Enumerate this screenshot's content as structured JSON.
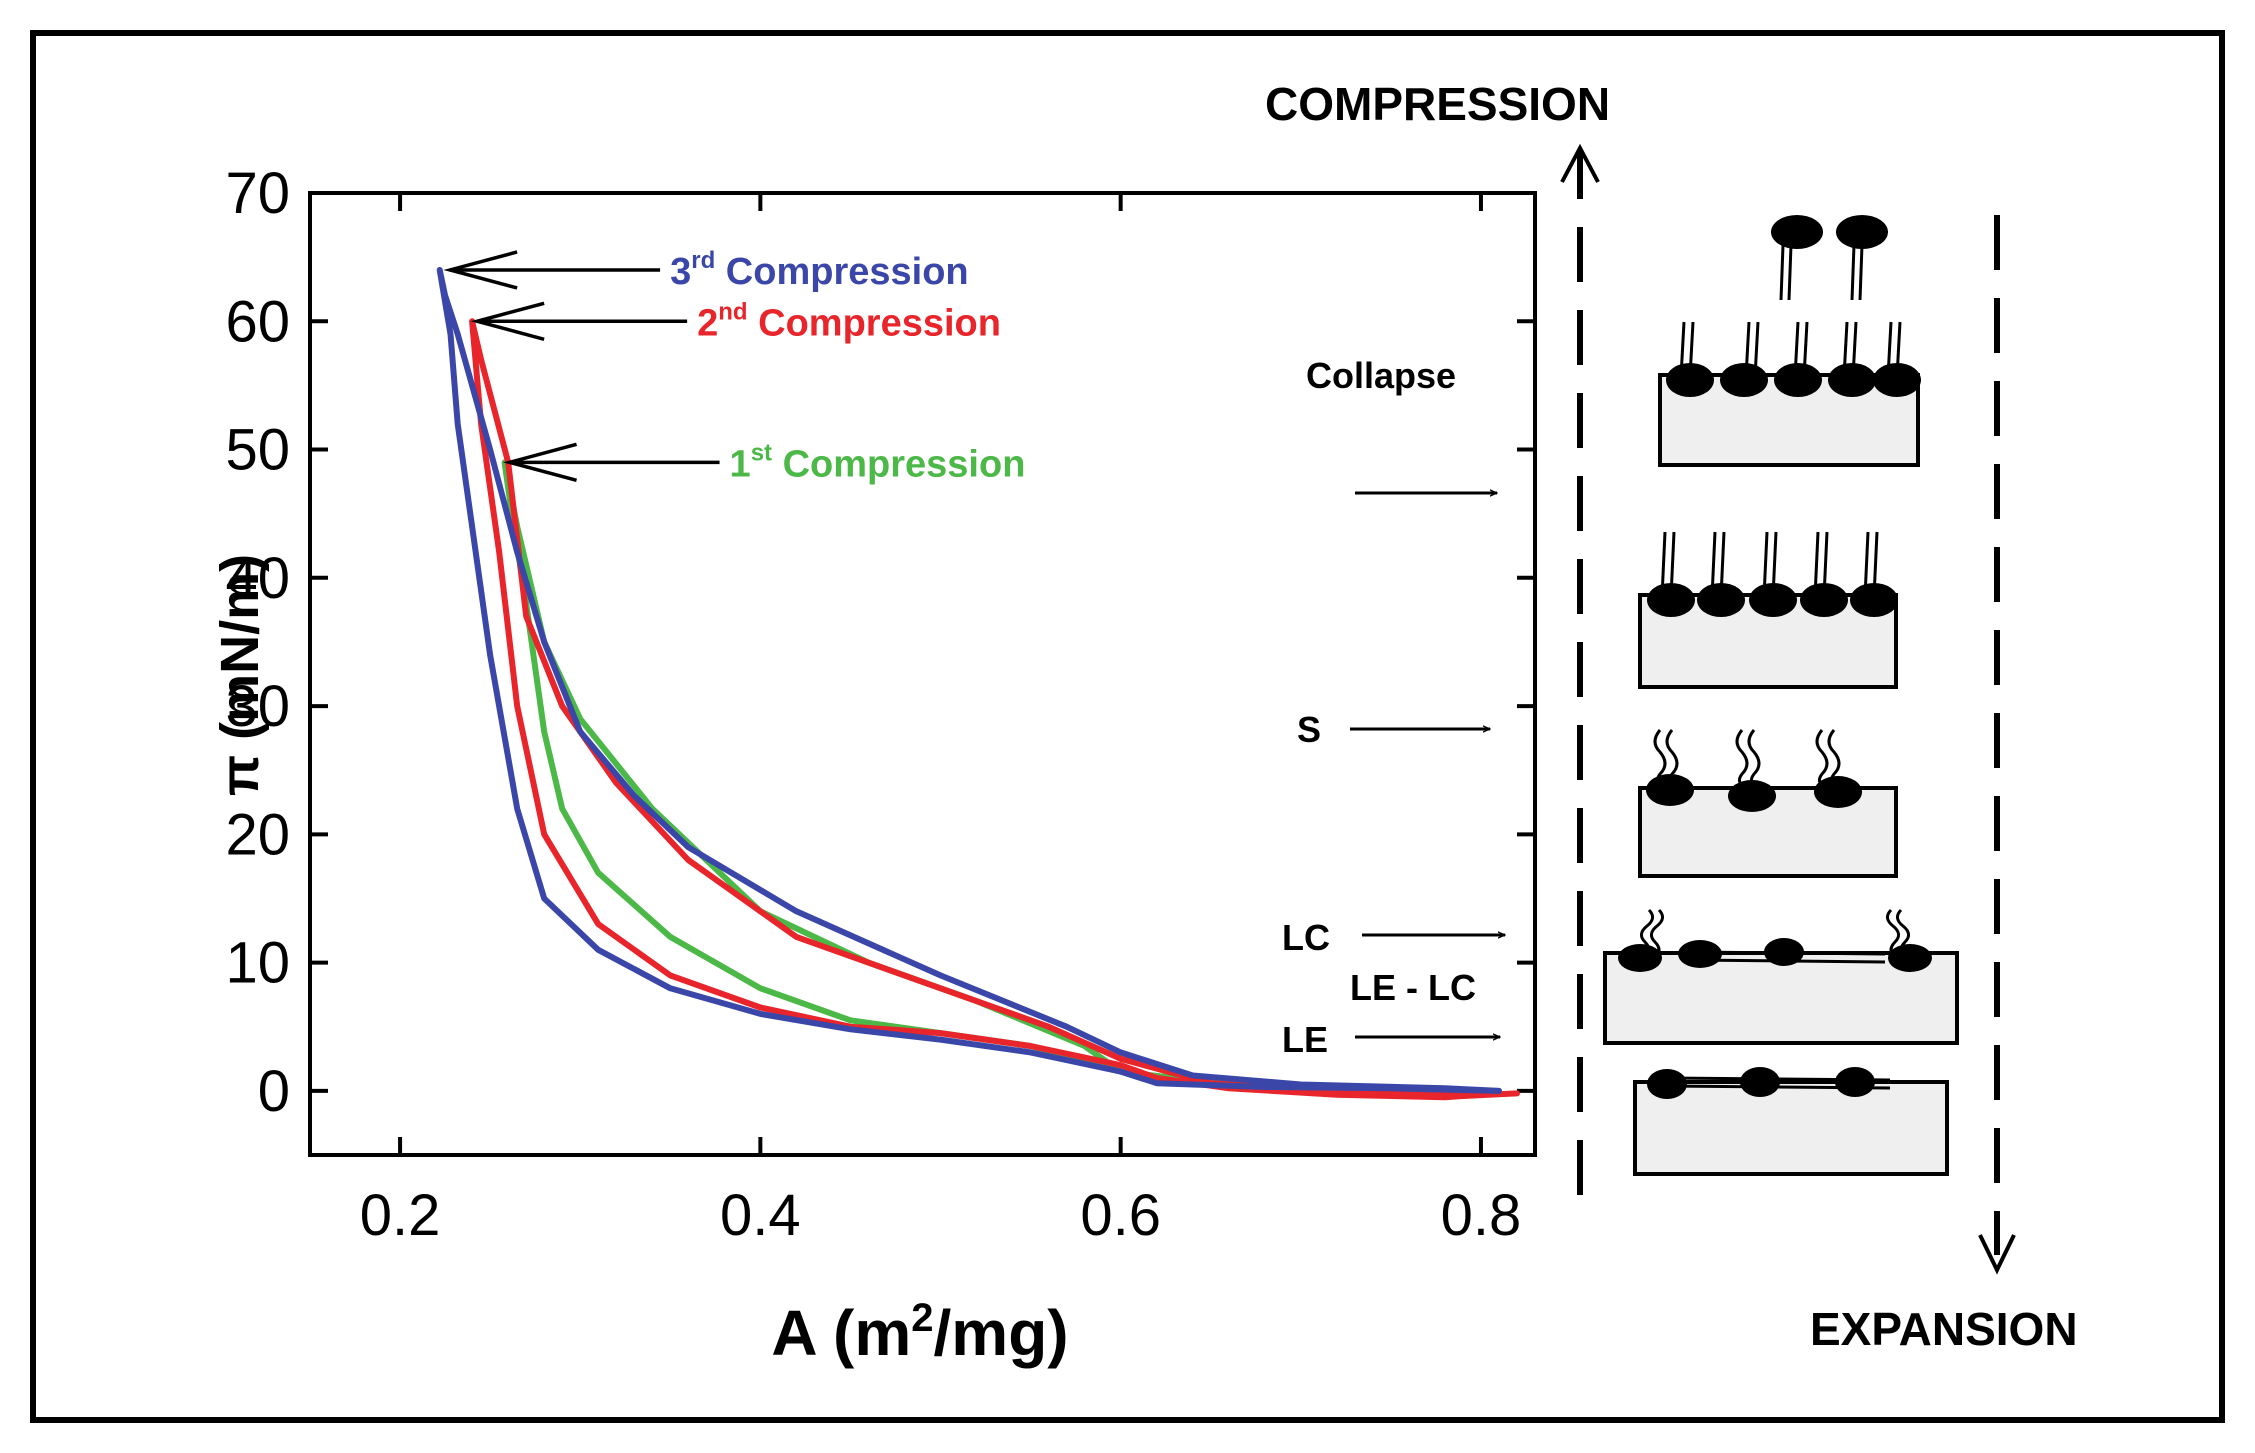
{
  "chart_data": {
    "type": "line",
    "title": "",
    "xlabel": "A (m",
    "xlabel_sup": "2",
    "xlabel_tail": "/mg)",
    "ylabel": "π (mN/m)",
    "xlim": [
      0.15,
      0.83
    ],
    "ylim": [
      -5,
      70
    ],
    "x_ticks": [
      0.2,
      0.4,
      0.6,
      0.8
    ],
    "x_tick_labels": [
      "0.2",
      "0.4",
      "0.6",
      "0.8"
    ],
    "y_ticks": [
      0,
      10,
      20,
      30,
      40,
      50,
      60,
      70
    ],
    "y_tick_labels": [
      "0",
      "10",
      "20",
      "30",
      "40",
      "50",
      "60",
      "70"
    ],
    "grid": false,
    "series": [
      {
        "name": "1st Compression",
        "color": "#4cb847",
        "x": [
          0.8,
          0.72,
          0.66,
          0.62,
          0.6,
          0.55,
          0.5,
          0.45,
          0.4,
          0.35,
          0.31,
          0.29,
          0.28,
          0.27,
          0.262,
          0.258,
          0.265,
          0.28,
          0.3,
          0.34,
          0.4,
          0.46,
          0.52,
          0.58,
          0.6,
          0.66,
          0.74,
          0.81
        ],
        "y": [
          0.0,
          0.3,
          0.5,
          0.9,
          1.5,
          3.5,
          4.5,
          5.5,
          8.0,
          12.0,
          17.0,
          22.0,
          28.0,
          38.0,
          45.0,
          49.0,
          44.0,
          35.0,
          29.0,
          22.0,
          14.0,
          10.0,
          7.0,
          3.5,
          1.5,
          0.5,
          0.1,
          0.0
        ]
      },
      {
        "name": "2nd Compression",
        "color": "#e8252b",
        "x": [
          0.81,
          0.78,
          0.72,
          0.66,
          0.62,
          0.6,
          0.55,
          0.5,
          0.45,
          0.4,
          0.35,
          0.31,
          0.28,
          0.265,
          0.255,
          0.245,
          0.24,
          0.245,
          0.26,
          0.27,
          0.29,
          0.32,
          0.36,
          0.42,
          0.5,
          0.56,
          0.6,
          0.65,
          0.72,
          0.79,
          0.82
        ],
        "y": [
          -0.2,
          -0.5,
          -0.3,
          0.2,
          1.0,
          2.0,
          3.5,
          4.5,
          5.0,
          6.5,
          9.0,
          13.0,
          20.0,
          30.0,
          42.0,
          52.0,
          60.0,
          57.0,
          49.0,
          37.0,
          30.0,
          24.0,
          18.0,
          12.0,
          8.0,
          5.0,
          2.5,
          0.6,
          0.0,
          -0.4,
          -0.2
        ]
      },
      {
        "name": "3rd Compression",
        "color": "#3b47a8",
        "x": [
          0.81,
          0.75,
          0.68,
          0.62,
          0.6,
          0.55,
          0.5,
          0.45,
          0.4,
          0.35,
          0.31,
          0.28,
          0.265,
          0.25,
          0.24,
          0.232,
          0.228,
          0.222,
          0.225,
          0.232,
          0.24,
          0.25,
          0.265,
          0.28,
          0.3,
          0.33,
          0.36,
          0.42,
          0.5,
          0.57,
          0.6,
          0.64,
          0.7,
          0.78,
          0.81
        ],
        "y": [
          0.0,
          0.2,
          0.3,
          0.6,
          1.5,
          3.0,
          4.0,
          4.8,
          6.0,
          8.0,
          11.0,
          15.0,
          22.0,
          34.0,
          44.0,
          52.0,
          59.0,
          64.0,
          62.0,
          59.0,
          55.0,
          50.0,
          42.0,
          35.0,
          28.0,
          23.0,
          19.0,
          14.0,
          9.0,
          5.0,
          3.0,
          1.2,
          0.5,
          0.2,
          0.0
        ]
      }
    ],
    "annotations": [
      {
        "id": "third",
        "ord": "3",
        "sup": "rd",
        "text": " Compression",
        "color": "#3b47a8",
        "point": [
          0.225,
          64.0
        ]
      },
      {
        "id": "second",
        "ord": "2",
        "sup": "nd",
        "text": " Compression",
        "color": "#e8252b",
        "point": [
          0.24,
          60.0
        ]
      },
      {
        "id": "first",
        "ord": "1",
        "sup": "st",
        "text": " Compression",
        "color": "#4cb847",
        "point": [
          0.258,
          49.0
        ]
      }
    ]
  },
  "phase_labels": {
    "collapse": "Collapse",
    "s": "S",
    "lc": "LC",
    "le_lc": "LE - LC",
    "le": "LE"
  },
  "direction_labels": {
    "compression": "COMPRESSION",
    "expansion": "EXPANSION"
  }
}
